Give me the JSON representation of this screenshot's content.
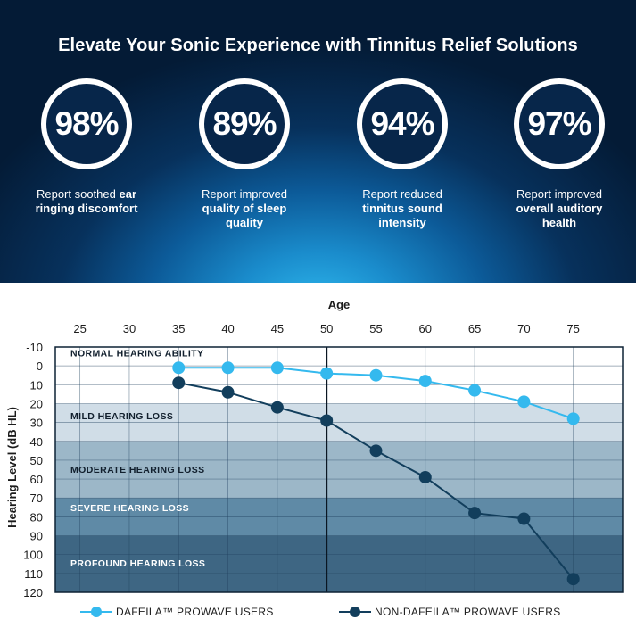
{
  "banner": {
    "title": "Elevate Your Sonic Experience with Tinnitus Relief Solutions",
    "stats": [
      {
        "value": "98%",
        "text_plain": "Report soothed ",
        "text_bold1": "ear",
        "text_bold2": "ringing discomfort",
        "text_bold3": ""
      },
      {
        "value": "89%",
        "text_plain": "Report improved",
        "text_bold1": "",
        "text_bold2": "quality of sleep",
        "text_bold3": "quality"
      },
      {
        "value": "94%",
        "text_plain": "Report reduced",
        "text_bold1": "",
        "text_bold2": "tinnitus sound",
        "text_bold3": "intensity"
      },
      {
        "value": "97%",
        "text_plain": "Report improved",
        "text_bold1": "",
        "text_bold2": "overall auditory",
        "text_bold3": "health"
      }
    ]
  },
  "chart_data": {
    "type": "line",
    "xlabel": "Age",
    "ylabel": "Hearing Level (dB HL)",
    "x_ticks": [
      25,
      30,
      35,
      40,
      45,
      50,
      55,
      60,
      65,
      70,
      75
    ],
    "y_ticks": [
      -10,
      0,
      10,
      20,
      30,
      40,
      50,
      60,
      70,
      80,
      90,
      100,
      110,
      120
    ],
    "xlim": [
      22.5,
      80
    ],
    "ylim": [
      -10,
      120
    ],
    "y_inverted": true,
    "grid": true,
    "marker_line_x": 50,
    "bands": [
      {
        "label": "NORMAL HEARING ABILITY",
        "from": -10,
        "to": 20,
        "color": "#ffffff"
      },
      {
        "label": "MILD HEARING LOSS",
        "from": 20,
        "to": 40,
        "color": "#d0dde7"
      },
      {
        "label": "MODERATE HEARING LOSS",
        "from": 40,
        "to": 70,
        "color": "#9cb7c8"
      },
      {
        "label": "SEVERE HEARING LOSS",
        "from": 70,
        "to": 90,
        "color": "#5f8aa6"
      },
      {
        "label": "PROFOUND HEARING LOSS",
        "from": 90,
        "to": 120,
        "color": "#3e6683"
      }
    ],
    "series": [
      {
        "name": "DAFEILA™ PROWAVE USERS",
        "color": "#34b9ee",
        "x": [
          35,
          40,
          45,
          50,
          55,
          60,
          65,
          70,
          75
        ],
        "y": [
          1,
          1,
          1,
          4,
          5,
          8,
          13,
          19,
          28
        ]
      },
      {
        "name": "NON-DAFEILA™ PROWAVE USERS",
        "color": "#123e5c",
        "x": [
          35,
          40,
          45,
          50,
          55,
          60,
          65,
          70,
          75
        ],
        "y": [
          9,
          14,
          22,
          29,
          45,
          59,
          78,
          81,
          113
        ]
      }
    ]
  }
}
